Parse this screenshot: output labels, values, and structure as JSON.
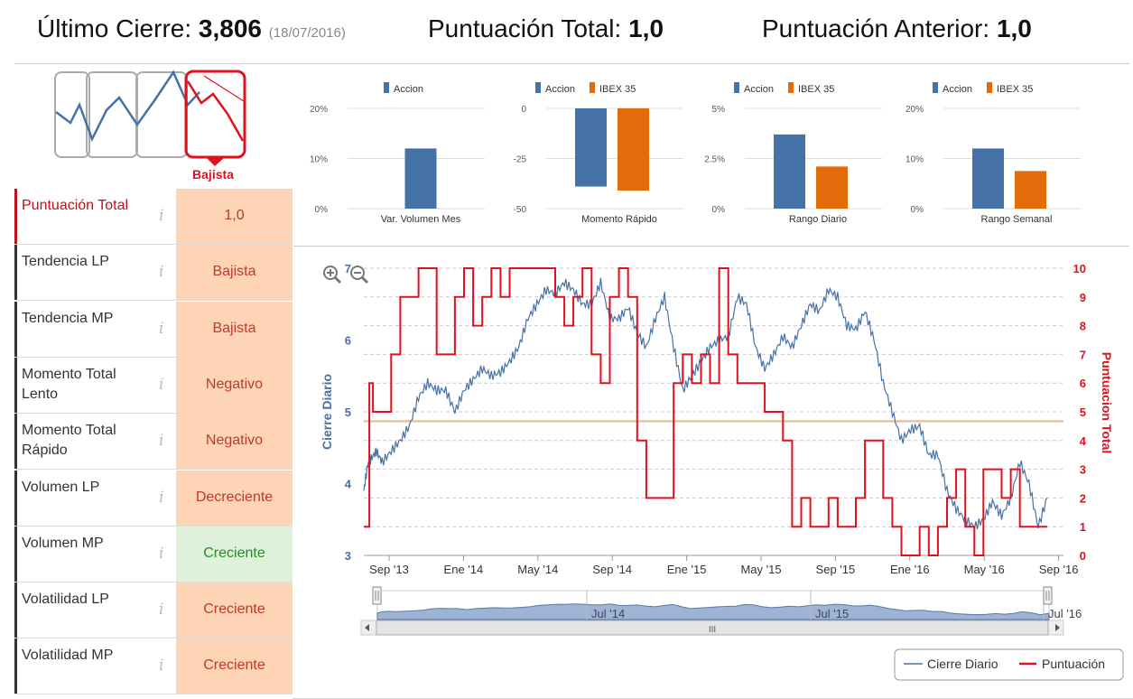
{
  "header": {
    "last_close_label": "Último Cierre:",
    "last_close_value": "3,806",
    "last_close_date": "(18/07/2016)",
    "total_score_label": "Puntuación Total:",
    "total_score_value": "1,0",
    "prev_score_label": "Puntuación Anterior:",
    "prev_score_value": "1,0"
  },
  "trend_badge": "Bajista",
  "rows": [
    {
      "label": "Puntuación Total",
      "value": "1,0",
      "tone": "neutral"
    },
    {
      "label": "Tendencia LP",
      "value": "Bajista",
      "tone": "bad"
    },
    {
      "label": "Tendencia MP",
      "value": "Bajista",
      "tone": "bad"
    },
    {
      "label": "Momento Total Lento",
      "value": "Negativo",
      "tone": "bad"
    },
    {
      "label": "Momento Total Rápido",
      "value": "Negativo",
      "tone": "bad"
    },
    {
      "label": "Volumen LP",
      "value": "Decreciente",
      "tone": "bad"
    },
    {
      "label": "Volumen MP",
      "value": "Creciente",
      "tone": "good"
    },
    {
      "label": "Volatilidad LP",
      "value": "Creciente",
      "tone": "bad"
    },
    {
      "label": "Volatilidad MP",
      "value": "Creciente",
      "tone": "bad"
    }
  ],
  "info_glyph": "i",
  "colors": {
    "accion": "#4572a7",
    "ibex": "#e36c0a",
    "score": "#e0101e",
    "ref_line": "#f0c090",
    "navigator": "#9eb4d6"
  },
  "chart_data": [
    {
      "type": "bar",
      "categories": [
        "Var. Volumen Mes"
      ],
      "series": [
        {
          "name": "Accion",
          "values": [
            12
          ]
        }
      ],
      "yticks": [
        "20%",
        "10%",
        "0%"
      ],
      "ylim": [
        0,
        20
      ]
    },
    {
      "type": "bar",
      "categories": [
        "Momento Rápido"
      ],
      "series": [
        {
          "name": "Accion",
          "values": [
            -39
          ]
        },
        {
          "name": "IBEX 35",
          "values": [
            -41
          ]
        }
      ],
      "yticks": [
        "0",
        "-25",
        "-50"
      ],
      "ylim": [
        -50,
        0
      ]
    },
    {
      "type": "bar",
      "categories": [
        "Rango Diario"
      ],
      "series": [
        {
          "name": "Accion",
          "values": [
            3.7
          ]
        },
        {
          "name": "IBEX 35",
          "values": [
            2.1
          ]
        }
      ],
      "yticks": [
        "5%",
        "2.5%",
        "0%"
      ],
      "ylim": [
        0,
        5
      ]
    },
    {
      "type": "bar",
      "categories": [
        "Rango Semanal"
      ],
      "series": [
        {
          "name": "Accion",
          "values": [
            12
          ]
        },
        {
          "name": "IBEX 35",
          "values": [
            7.5
          ]
        }
      ],
      "yticks": [
        "20%",
        "10%",
        "0%"
      ],
      "ylim": [
        0,
        20
      ]
    },
    {
      "type": "line",
      "ylabel": "Cierre Diario",
      "y2label": "Puntuacion Total",
      "yticks": [
        "7",
        "6",
        "5",
        "4",
        "3"
      ],
      "ylim": [
        3,
        7
      ],
      "y2ticks": [
        "10",
        "9",
        "8",
        "7",
        "6",
        "5",
        "4",
        "3",
        "2",
        "1",
        "0"
      ],
      "y2lim": [
        0,
        10
      ],
      "xticks": [
        "Sep '13",
        "Ene '14",
        "May '14",
        "Sep '14",
        "Ene '15",
        "May '15",
        "Sep '15",
        "Ene '16",
        "May '16",
        "Sep '16"
      ],
      "ref_line": 4.87,
      "series": [
        {
          "name": "Cierre Diario",
          "x": [
            0,
            0.2,
            0.4,
            0.7,
            1,
            1.5,
            2,
            2.5,
            3,
            3.5,
            4,
            4.5,
            5,
            5.5,
            6,
            6.5,
            7,
            7.5,
            8,
            8.5,
            9,
            9.5,
            10,
            10.5,
            11,
            11.5,
            12,
            12.5,
            13,
            13.5,
            14,
            14.5,
            15,
            15.5,
            16,
            16.5,
            17,
            17.5,
            18,
            18.5,
            19,
            19.5,
            20,
            20.5,
            21,
            21.5,
            22,
            22.5,
            23,
            23.5,
            24,
            24.5,
            25,
            25.5,
            26,
            26.5,
            27,
            27.5,
            28,
            28.5,
            29,
            29.5,
            30,
            30.5,
            31,
            31.5,
            32,
            32.5,
            33,
            33.5,
            34,
            34.5,
            35,
            35.5,
            36,
            36.5,
            37,
            37.5
          ],
          "y": [
            3.9,
            4.25,
            4.35,
            4.45,
            4.3,
            4.45,
            4.6,
            4.8,
            5.2,
            5.4,
            5.3,
            5.3,
            5.0,
            5.3,
            5.45,
            5.6,
            5.5,
            5.55,
            5.7,
            5.9,
            6.3,
            6.5,
            6.7,
            6.65,
            6.8,
            6.7,
            6.5,
            6.5,
            6.8,
            6.3,
            6.3,
            6.45,
            6.1,
            5.9,
            6.3,
            6.6,
            5.9,
            5.3,
            5.5,
            5.7,
            5.9,
            6.0,
            6.05,
            6.6,
            6.5,
            5.9,
            5.6,
            5.8,
            6.05,
            5.9,
            6.2,
            6.5,
            6.4,
            6.7,
            6.6,
            6.2,
            6.15,
            6.4,
            6.0,
            5.4,
            5.0,
            4.6,
            4.75,
            4.8,
            4.4,
            4.4,
            3.9,
            3.65,
            3.5,
            3.4,
            3.5,
            3.75,
            3.55,
            3.8,
            4.3,
            4.0,
            3.4,
            3.8
          ],
          "unit": "daily-close"
        },
        {
          "name": "Puntuación",
          "x": [
            0,
            0.3,
            0.5,
            1,
            1.5,
            2,
            3,
            3.5,
            4,
            4.5,
            5,
            5.5,
            6,
            6.5,
            7,
            7.5,
            8,
            8.5,
            9,
            9.5,
            10,
            10.5,
            11,
            11.5,
            12,
            12.5,
            13,
            13.5,
            14,
            14.5,
            15,
            15.5,
            16,
            16.5,
            17,
            17.5,
            18,
            18.5,
            19,
            19.5,
            20,
            20.5,
            21,
            21.5,
            22,
            22.5,
            23,
            23.5,
            24,
            24.5,
            25,
            25.5,
            26,
            26.5,
            27,
            27.5,
            28,
            28.5,
            29,
            29.5,
            30,
            30.5,
            31,
            31.5,
            32,
            32.5,
            33,
            33.5,
            34,
            34.5,
            35,
            35.5,
            36,
            36.5,
            37,
            37.5
          ],
          "y": [
            1,
            6,
            5,
            5,
            7,
            9,
            10,
            10,
            7,
            7,
            9,
            10,
            8,
            9,
            10,
            9,
            10,
            10,
            10,
            10,
            10,
            9,
            8,
            9,
            10,
            7,
            6,
            9,
            10,
            9,
            4,
            2,
            2,
            2,
            6,
            7,
            6,
            7,
            6,
            10,
            7,
            6,
            6,
            6,
            5,
            5,
            4,
            1,
            2,
            1,
            1,
            2,
            1,
            1,
            2,
            4,
            4,
            2,
            1,
            0,
            0,
            1,
            0,
            1,
            2,
            3,
            1,
            0,
            3,
            3,
            2,
            3,
            1,
            1,
            1,
            1
          ],
          "unit": "score"
        }
      ]
    }
  ],
  "main_legend": [
    "Cierre Diario",
    "Puntuación"
  ],
  "navigator": {
    "labels": [
      "Jul '14",
      "Jul '15",
      "Jul '16"
    ],
    "scroll_glyph": "III"
  }
}
